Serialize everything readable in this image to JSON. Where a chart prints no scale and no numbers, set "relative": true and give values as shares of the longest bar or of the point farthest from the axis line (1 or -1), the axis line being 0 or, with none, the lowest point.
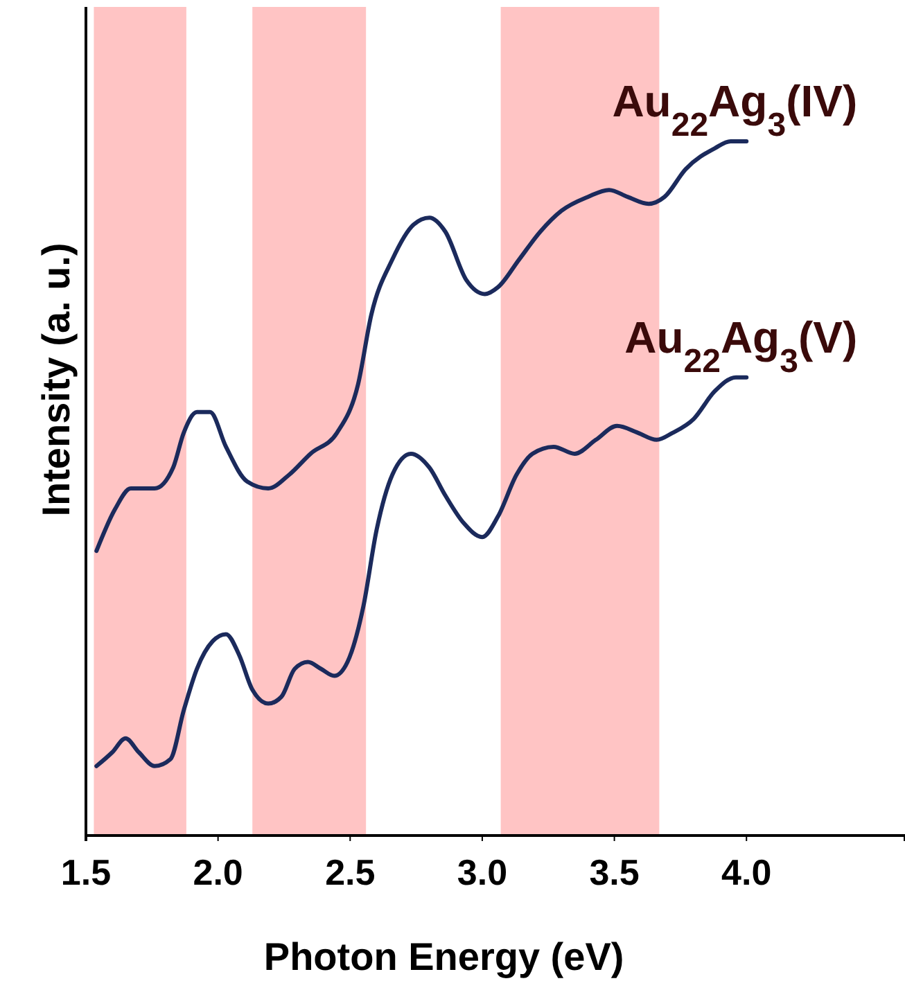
{
  "chart_data": {
    "type": "line",
    "relative": true,
    "xlabel": "Photon Energy (eV)",
    "ylabel": "Intensity (a. u.)",
    "xlim": [
      1.5,
      4.6
    ],
    "xticks": [
      {
        "value": 1.5,
        "label": "1.5"
      },
      {
        "value": 2.0,
        "label": "2.0"
      },
      {
        "value": 2.5,
        "label": "2.5"
      },
      {
        "value": 3.0,
        "label": "3.0"
      },
      {
        "value": 3.5,
        "label": "3.5"
      },
      {
        "value": 4.0,
        "label": "4.0"
      }
    ],
    "tick_labels": "x",
    "legend": false,
    "grid": false,
    "bands": [
      {
        "axis": "x",
        "from": 1.53,
        "to": 1.88,
        "color": "#ffc4c4"
      },
      {
        "axis": "x",
        "from": 2.13,
        "to": 2.56,
        "color": "#ffc4c4"
      },
      {
        "axis": "x",
        "from": 3.07,
        "to": 3.67,
        "color": "#ffc4c4"
      }
    ],
    "series": [
      {
        "name": "Au$_{22}$Ag$_{3}$(IV)",
        "color": "#1b2a5c",
        "x": [
          1.54,
          1.61,
          1.67,
          1.76,
          1.83,
          1.87,
          1.92,
          1.97,
          2.03,
          2.11,
          2.19,
          2.27,
          2.35,
          2.45,
          2.53,
          2.58,
          2.66,
          2.74,
          2.8,
          2.86,
          2.94,
          3.01,
          3.06,
          3.14,
          3.22,
          3.3,
          3.4,
          3.48,
          3.55,
          3.63,
          3.69,
          3.77,
          3.88,
          3.94,
          4.0
        ],
        "values": [
          0.41,
          0.47,
          0.5,
          0.5,
          0.53,
          0.58,
          0.61,
          0.61,
          0.56,
          0.51,
          0.5,
          0.52,
          0.55,
          0.58,
          0.65,
          0.75,
          0.83,
          0.88,
          0.89,
          0.87,
          0.8,
          0.78,
          0.79,
          0.83,
          0.87,
          0.9,
          0.92,
          0.93,
          0.92,
          0.91,
          0.92,
          0.96,
          0.99,
          1.0,
          1.0
        ]
      },
      {
        "name": "Au$_{22}$Ag$_{3}$(V)",
        "color": "#1b2a5c",
        "x": [
          1.54,
          1.6,
          1.65,
          1.7,
          1.76,
          1.82,
          1.87,
          1.92,
          1.98,
          2.03,
          2.08,
          2.13,
          2.19,
          2.24,
          2.29,
          2.34,
          2.39,
          2.44,
          2.49,
          2.55,
          2.6,
          2.66,
          2.73,
          2.8,
          2.86,
          2.93,
          3.0,
          3.06,
          3.13,
          3.19,
          3.27,
          3.35,
          3.43,
          3.51,
          3.59,
          3.66,
          3.72,
          3.8,
          3.88,
          3.96,
          4.0
        ],
        "values": [
          0.1,
          0.12,
          0.14,
          0.12,
          0.1,
          0.11,
          0.18,
          0.24,
          0.28,
          0.29,
          0.26,
          0.21,
          0.19,
          0.2,
          0.24,
          0.25,
          0.24,
          0.23,
          0.25,
          0.33,
          0.44,
          0.52,
          0.55,
          0.53,
          0.49,
          0.45,
          0.43,
          0.46,
          0.52,
          0.55,
          0.56,
          0.55,
          0.57,
          0.59,
          0.58,
          0.57,
          0.58,
          0.6,
          0.64,
          0.66,
          0.66
        ]
      }
    ]
  }
}
